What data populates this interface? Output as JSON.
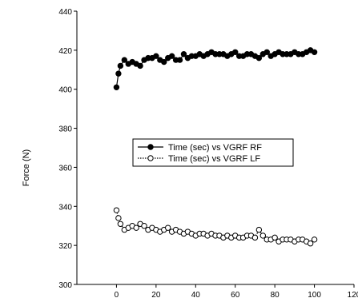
{
  "chart_data": {
    "type": "scatter",
    "title": "",
    "xlabel": "",
    "ylabel": "Force (N)",
    "xlim": [
      -20,
      120
    ],
    "ylim": [
      300,
      440
    ],
    "xticks": [
      0,
      20,
      40,
      60,
      80,
      100,
      120
    ],
    "xtick_labels": [
      "0",
      "20",
      "40",
      "60",
      "80",
      "100",
      "120"
    ],
    "yticks": [
      300,
      320,
      340,
      360,
      380,
      400,
      420,
      440
    ],
    "ytick_labels": [
      "300",
      "320",
      "340",
      "360",
      "380",
      "400",
      "420",
      "440"
    ],
    "grid": false,
    "legend_position": "center",
    "series": [
      {
        "name": "Time (sec) vs VGRF RF",
        "marker": "filled-circle",
        "line_style": "solid",
        "color": "#000000",
        "x": [
          0,
          1,
          2,
          4,
          6,
          8,
          10,
          12,
          14,
          16,
          18,
          20,
          22,
          24,
          26,
          28,
          30,
          32,
          34,
          36,
          38,
          40,
          42,
          44,
          46,
          48,
          50,
          52,
          54,
          56,
          58,
          60,
          62,
          64,
          66,
          68,
          70,
          72,
          74,
          76,
          78,
          80,
          82,
          84,
          86,
          88,
          90,
          92,
          94,
          96,
          98,
          100
        ],
        "y": [
          401,
          408,
          412,
          415,
          413,
          414,
          413,
          412,
          415,
          416,
          416,
          417,
          415,
          414,
          416,
          417,
          415,
          415,
          418,
          416,
          417,
          417,
          418,
          417,
          418,
          419,
          418,
          418,
          418,
          417,
          418,
          419,
          417,
          417,
          418,
          418,
          417,
          416,
          418,
          419,
          417,
          418,
          419,
          418,
          418,
          418,
          419,
          418,
          418,
          419,
          420,
          419
        ]
      },
      {
        "name": "Time (sec) vs VGRF LF",
        "marker": "open-circle",
        "line_style": "dotted",
        "color": "#000000",
        "x": [
          0,
          1,
          2,
          4,
          6,
          8,
          10,
          12,
          14,
          16,
          18,
          20,
          22,
          24,
          26,
          28,
          30,
          32,
          34,
          36,
          38,
          40,
          42,
          44,
          46,
          48,
          50,
          52,
          54,
          56,
          58,
          60,
          62,
          64,
          66,
          68,
          70,
          72,
          74,
          76,
          78,
          80,
          82,
          84,
          86,
          88,
          90,
          92,
          94,
          96,
          98,
          100
        ],
        "y": [
          338,
          334,
          331,
          328,
          329,
          330,
          329,
          331,
          330,
          328,
          329,
          328,
          327,
          328,
          329,
          327,
          328,
          327,
          326,
          327,
          326,
          325,
          326,
          326,
          325,
          326,
          325,
          325,
          324,
          325,
          324,
          325,
          324,
          324,
          325,
          325,
          324,
          328,
          325,
          323,
          323,
          324,
          322,
          323,
          323,
          323,
          322,
          323,
          323,
          322,
          321,
          323
        ]
      }
    ]
  }
}
